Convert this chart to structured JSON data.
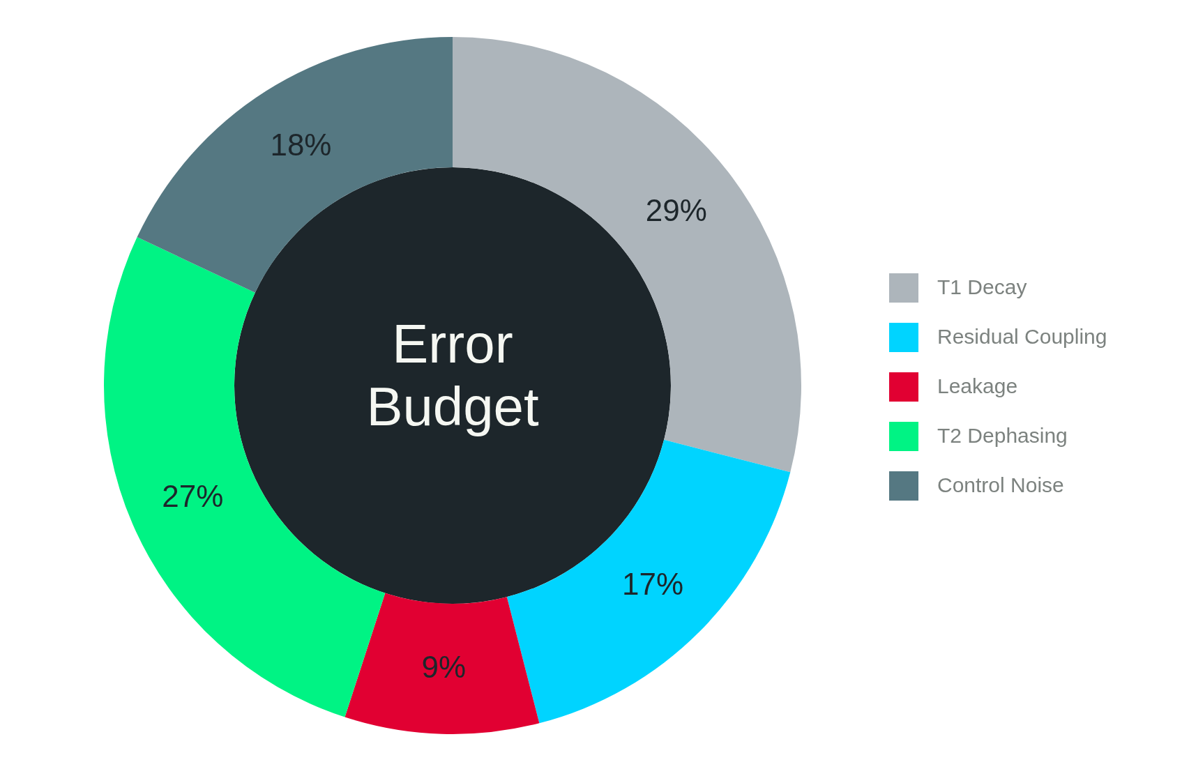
{
  "chart_data": {
    "type": "donut",
    "title": "Error Budget",
    "categories": [
      "T1 Decay",
      "Residual Coupling",
      "Leakage",
      "T2 Dephasing",
      "Control Noise"
    ],
    "values": [
      29,
      17,
      9,
      27,
      18
    ],
    "colors": [
      "#adb5bb",
      "#00d4ff",
      "#e10032",
      "#00f384",
      "#557882"
    ],
    "value_labels": [
      "29%",
      "17%",
      "9%",
      "27%",
      "18%"
    ],
    "legend": "right"
  }
}
